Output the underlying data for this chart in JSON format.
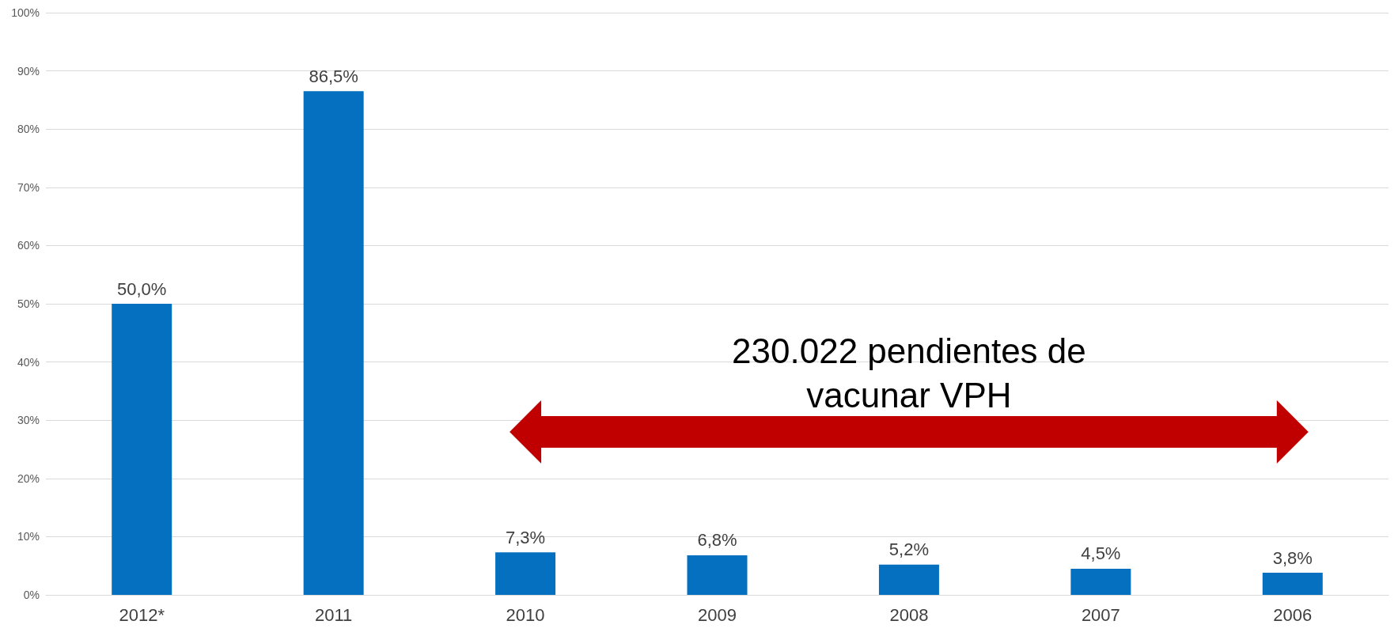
{
  "chart_data": {
    "type": "bar",
    "categories": [
      "2012*",
      "2011",
      "2010",
      "2009",
      "2008",
      "2007",
      "2006"
    ],
    "values": [
      50.0,
      86.5,
      7.3,
      6.8,
      5.2,
      4.5,
      3.8
    ],
    "value_labels": [
      "50,0%",
      "86,5%",
      "7,3%",
      "6,8%",
      "5,2%",
      "4,5%",
      "3,8%"
    ],
    "color": "#0570c0",
    "ylim": [
      0,
      100
    ],
    "yticks": [
      {
        "value": 0,
        "label": "0%"
      },
      {
        "value": 10,
        "label": "10%"
      },
      {
        "value": 20,
        "label": "20%"
      },
      {
        "value": 30,
        "label": "30%"
      },
      {
        "value": 40,
        "label": "40%"
      },
      {
        "value": 50,
        "label": "50%"
      },
      {
        "value": 60,
        "label": "60%"
      },
      {
        "value": 70,
        "label": "70%"
      },
      {
        "value": 80,
        "label": "80%"
      },
      {
        "value": 90,
        "label": "90%"
      },
      {
        "value": 100,
        "label": "100%"
      }
    ],
    "grid": "y",
    "annotations": [
      "230.022 pendientes de vacunar VPH"
    ]
  }
}
